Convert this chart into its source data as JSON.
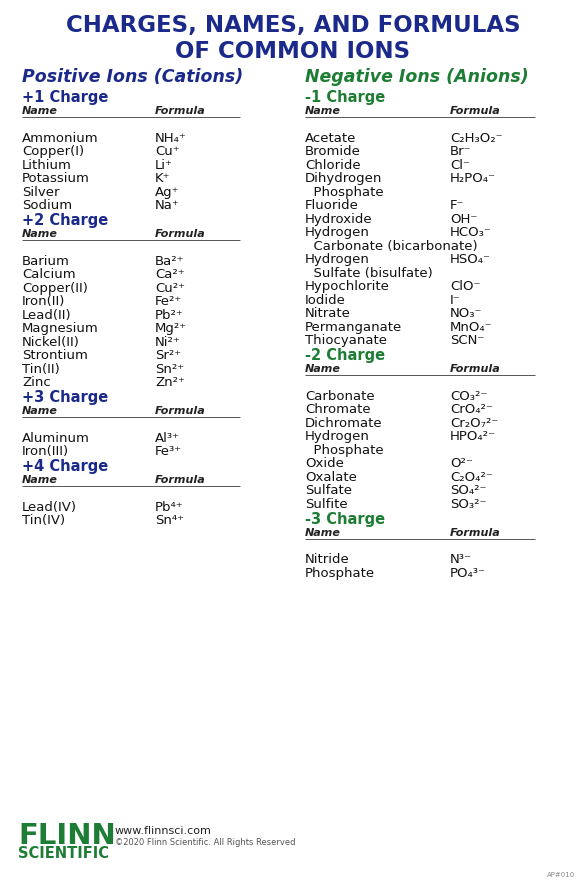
{
  "title_line1": "CHARGES, NAMES, AND FORMULAS",
  "title_line2": "OF COMMON IONS",
  "title_color": "#1b2a8a",
  "cation_header": "Positive Ions (Cations)",
  "anion_header": "Negative Ions (Anions)",
  "header_color_cation": "#1b2a8a",
  "header_color_anion": "#1e7d34",
  "charge_color_cation": "#1b2a8a",
  "charge_color_anion": "#1e7d34",
  "bg_color": "#ffffff",
  "cations": {
    "+1 Charge": [
      [
        "Ammonium",
        "NH₄⁺"
      ],
      [
        "Copper(I)",
        "Cu⁺"
      ],
      [
        "Lithium",
        "Li⁺"
      ],
      [
        "Potassium",
        "K⁺"
      ],
      [
        "Silver",
        "Ag⁺"
      ],
      [
        "Sodium",
        "Na⁺"
      ]
    ],
    "+2 Charge": [
      [
        "Barium",
        "Ba²⁺"
      ],
      [
        "Calcium",
        "Ca²⁺"
      ],
      [
        "Copper(II)",
        "Cu²⁺"
      ],
      [
        "Iron(II)",
        "Fe²⁺"
      ],
      [
        "Lead(II)",
        "Pb²⁺"
      ],
      [
        "Magnesium",
        "Mg²⁺"
      ],
      [
        "Nickel(II)",
        "Ni²⁺"
      ],
      [
        "Strontium",
        "Sr²⁺"
      ],
      [
        "Tin(II)",
        "Sn²⁺"
      ],
      [
        "Zinc",
        "Zn²⁺"
      ]
    ],
    "+3 Charge": [
      [
        "Aluminum",
        "Al³⁺"
      ],
      [
        "Iron(III)",
        "Fe³⁺"
      ]
    ],
    "+4 Charge": [
      [
        "Lead(IV)",
        "Pb⁴⁺"
      ],
      [
        "Tin(IV)",
        "Sn⁴⁺"
      ]
    ]
  },
  "anions": {
    "-1 Charge": [
      [
        "Acetate",
        "C₂H₃O₂⁻"
      ],
      [
        "Bromide",
        "Br⁻"
      ],
      [
        "Chloride",
        "Cl⁻"
      ],
      [
        "Dihydrogen",
        "H₂PO₄⁻"
      ],
      [
        "  Phosphate",
        ""
      ],
      [
        "Fluoride",
        "F⁻"
      ],
      [
        "Hydroxide",
        "OH⁻"
      ],
      [
        "Hydrogen",
        "HCO₃⁻"
      ],
      [
        "  Carbonate (bicarbonate)",
        ""
      ],
      [
        "Hydrogen",
        "HSO₄⁻"
      ],
      [
        "  Sulfate (bisulfate)",
        ""
      ],
      [
        "Hypochlorite",
        "ClO⁻"
      ],
      [
        "Iodide",
        "I⁻"
      ],
      [
        "Nitrate",
        "NO₃⁻"
      ],
      [
        "Permanganate",
        "MnO₄⁻"
      ],
      [
        "Thiocyanate",
        "SCN⁻"
      ]
    ],
    "-2 Charge": [
      [
        "Carbonate",
        "CO₃²⁻"
      ],
      [
        "Chromate",
        "CrO₄²⁻"
      ],
      [
        "Dichromate",
        "Cr₂O₇²⁻"
      ],
      [
        "Hydrogen",
        "HPO₄²⁻"
      ],
      [
        "  Phosphate",
        ""
      ],
      [
        "Oxide",
        "O²⁻"
      ],
      [
        "Oxalate",
        "C₂O₄²⁻"
      ],
      [
        "Sulfate",
        "SO₄²⁻"
      ],
      [
        "Sulfite",
        "SO₃²⁻"
      ]
    ],
    "-3 Charge": [
      [
        "Nitride",
        "N³⁻"
      ],
      [
        "Phosphate",
        "PO₄³⁻"
      ]
    ]
  },
  "flinn_green": "#1e7d34",
  "flinn_text": "www.flinnsci.com",
  "flinn_copy": "©2020 Flinn Scientific. All Rights Reserved"
}
